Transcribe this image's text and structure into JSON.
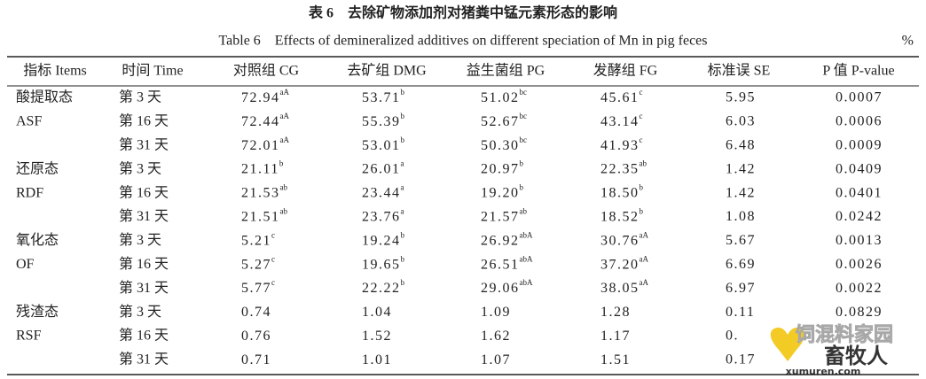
{
  "title_cn": "表 6　去除矿物添加剂对猪粪中锰元素形态的影响",
  "title_en": "Table 6　Effects of demineralized additives on different speciation of Mn in pig feces",
  "unit": "%",
  "header": [
    "指标 Items",
    "时间 Time",
    "对照组 CG",
    "去矿组 DMG",
    "益生菌组 PG",
    "发酵组 FG",
    "标准误 SE",
    "P 值 P-value"
  ],
  "rows": [
    {
      "item": "酸提取态",
      "time": "第 3 天",
      "cells": [
        {
          "value": "72.94",
          "sup": "aA"
        },
        {
          "value": "53.71",
          "sup": "b"
        },
        {
          "value": "51.02",
          "sup": "bc"
        },
        {
          "value": "45.61",
          "sup": "c"
        }
      ],
      "se": "5.95",
      "p": "0.0007"
    },
    {
      "item": "ASF",
      "time": "第 16 天",
      "cells": [
        {
          "value": "72.44",
          "sup": "aA"
        },
        {
          "value": "55.39",
          "sup": "b"
        },
        {
          "value": "52.67",
          "sup": "bc"
        },
        {
          "value": "43.14",
          "sup": "c"
        }
      ],
      "se": "6.03",
      "p": "0.0006"
    },
    {
      "item": null,
      "time": "第 31 天",
      "cells": [
        {
          "value": "72.01",
          "sup": "aA"
        },
        {
          "value": "53.01",
          "sup": "b"
        },
        {
          "value": "50.30",
          "sup": "bc"
        },
        {
          "value": "41.93",
          "sup": "c"
        }
      ],
      "se": "6.48",
      "p": "0.0009"
    },
    {
      "item": "还原态",
      "time": "第 3 天",
      "cells": [
        {
          "value": "21.11",
          "sup": "b"
        },
        {
          "value": "26.01",
          "sup": "a"
        },
        {
          "value": "20.97",
          "sup": "b"
        },
        {
          "value": "22.35",
          "sup": "ab"
        }
      ],
      "se": "1.42",
      "p": "0.0409"
    },
    {
      "item": "RDF",
      "time": "第 16 天",
      "cells": [
        {
          "value": "21.53",
          "sup": "ab"
        },
        {
          "value": "23.44",
          "sup": "a"
        },
        {
          "value": "19.20",
          "sup": "b"
        },
        {
          "value": "18.50",
          "sup": "b"
        }
      ],
      "se": "1.42",
      "p": "0.0401"
    },
    {
      "item": null,
      "time": "第 31 天",
      "cells": [
        {
          "value": "21.51",
          "sup": "ab"
        },
        {
          "value": "23.76",
          "sup": "a"
        },
        {
          "value": "21.57",
          "sup": "ab"
        },
        {
          "value": "18.52",
          "sup": "b"
        }
      ],
      "se": "1.08",
      "p": "0.0242"
    },
    {
      "item": "氧化态",
      "time": "第 3 天",
      "cells": [
        {
          "value": "5.21",
          "sup": "c"
        },
        {
          "value": "19.24",
          "sup": "b"
        },
        {
          "value": "26.92",
          "sup": "abA"
        },
        {
          "value": "30.76",
          "sup": "aA"
        }
      ],
      "se": "5.67",
      "p": "0.0013"
    },
    {
      "item": "OF",
      "time": "第 16 天",
      "cells": [
        {
          "value": "5.27",
          "sup": "c"
        },
        {
          "value": "19.65",
          "sup": "b"
        },
        {
          "value": "26.51",
          "sup": "abA"
        },
        {
          "value": "37.20",
          "sup": "aA"
        }
      ],
      "se": "6.69",
      "p": "0.0026"
    },
    {
      "item": null,
      "time": "第 31 天",
      "cells": [
        {
          "value": "5.77",
          "sup": "c"
        },
        {
          "value": "22.22",
          "sup": "b"
        },
        {
          "value": "29.06",
          "sup": "abA"
        },
        {
          "value": "38.05",
          "sup": "aA"
        }
      ],
      "se": "6.97",
      "p": "0.0022"
    },
    {
      "item": "残渣态",
      "time": "第 3 天",
      "cells": [
        {
          "value": "0.74",
          "sup": null
        },
        {
          "value": "1.04",
          "sup": null
        },
        {
          "value": "1.09",
          "sup": null
        },
        {
          "value": "1.28",
          "sup": null
        }
      ],
      "se": "0.11",
      "p": "0.0829"
    },
    {
      "item": "RSF",
      "time": "第 16 天",
      "cells": [
        {
          "value": "0.76",
          "sup": null
        },
        {
          "value": "1.52",
          "sup": null
        },
        {
          "value": "1.62",
          "sup": null
        },
        {
          "value": "1.17",
          "sup": null
        }
      ],
      "se": "0.",
      "p": null
    },
    {
      "item": null,
      "time": "第 31 天",
      "cells": [
        {
          "value": "0.71",
          "sup": null
        },
        {
          "value": "1.01",
          "sup": null
        },
        {
          "value": "1.07",
          "sup": null
        },
        {
          "value": "1.51",
          "sup": null
        }
      ],
      "se": "0.17",
      "p": null
    }
  ],
  "watermark": {
    "site": "饲混料家园",
    "brand": "畜牧人",
    "url": "xumuren.com"
  }
}
